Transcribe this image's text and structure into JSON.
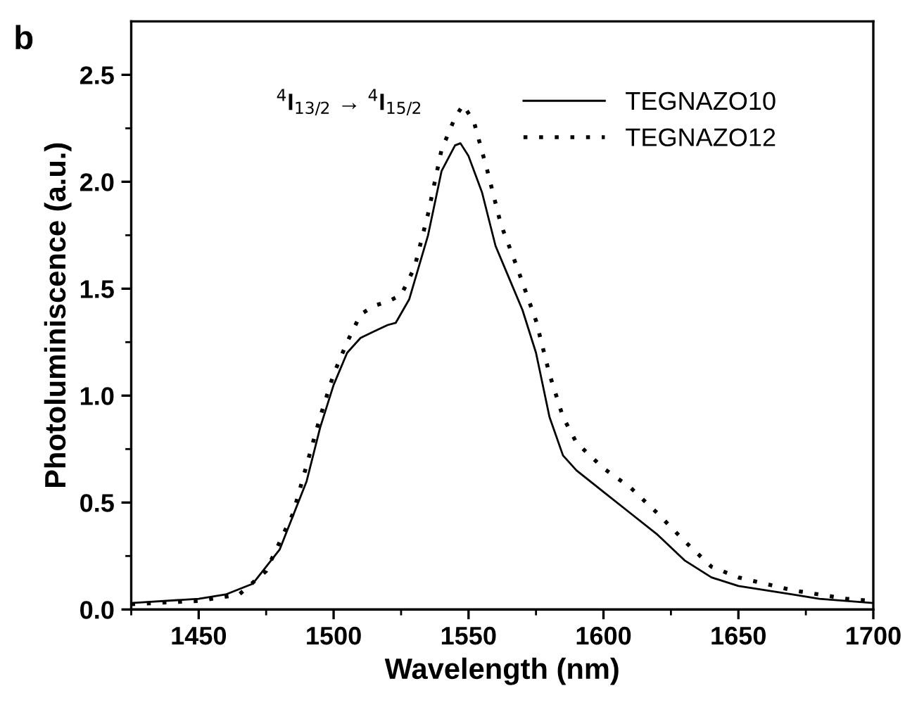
{
  "chart_data": {
    "type": "line",
    "xlabel": "Wavelength (nm)",
    "ylabel": "Photoluminiscence (a.u.)",
    "annotations": [
      "b",
      "$^{4}$I$_{13/2}$ → $^{4}$I$_{15/2}$"
    ],
    "xlim": [
      1425,
      1700
    ],
    "ylim": [
      0,
      2.75
    ],
    "xticks": [
      1450,
      1500,
      1550,
      1600,
      1650,
      1700,
      {
        "value": 1425,
        "label": null
      },
      {
        "value": 1475,
        "label": null
      },
      {
        "value": 1525,
        "label": null
      },
      {
        "value": 1575,
        "label": null
      },
      {
        "value": 1625,
        "label": null
      },
      {
        "value": 1675,
        "label": null
      }
    ],
    "yticks": [
      {
        "value": 0,
        "label": "0.0"
      },
      0.5,
      {
        "value": 1,
        "label": "1.0"
      },
      1.5,
      {
        "value": 2,
        "label": "2.0"
      },
      2.5,
      {
        "value": 0.25,
        "label": null
      },
      {
        "value": 0.75,
        "label": null
      },
      {
        "value": 1.25,
        "label": null
      },
      {
        "value": 1.75,
        "label": null
      },
      {
        "value": 2.25,
        "label": null
      }
    ],
    "grid": false,
    "legend": "top right",
    "series": [
      {
        "name": "TEGNAZO10",
        "color": "#000000",
        "line_style": "solid",
        "x": [
          1425,
          1450,
          1460,
          1470,
          1480,
          1490,
          1495,
          1500,
          1505,
          1510,
          1515,
          1520,
          1523,
          1528,
          1535,
          1540,
          1545,
          1547,
          1550,
          1555,
          1560,
          1565,
          1570,
          1575,
          1580,
          1585,
          1590,
          1600,
          1610,
          1620,
          1630,
          1640,
          1650,
          1660,
          1670,
          1680,
          1690,
          1700
        ],
        "values": [
          0.03,
          0.05,
          0.07,
          0.12,
          0.28,
          0.6,
          0.85,
          1.05,
          1.2,
          1.27,
          1.3,
          1.33,
          1.34,
          1.45,
          1.75,
          2.05,
          2.17,
          2.18,
          2.12,
          1.95,
          1.7,
          1.55,
          1.4,
          1.2,
          0.9,
          0.72,
          0.65,
          0.55,
          0.45,
          0.35,
          0.23,
          0.15,
          0.11,
          0.09,
          0.07,
          0.05,
          0.04,
          0.03
        ]
      },
      {
        "name": "TEGNAZO12",
        "color": "#000000",
        "line_style": "dotted",
        "x": [
          1425,
          1450,
          1465,
          1475,
          1485,
          1495,
          1500,
          1505,
          1510,
          1515,
          1520,
          1525,
          1530,
          1535,
          1540,
          1545,
          1548,
          1552,
          1557,
          1562,
          1568,
          1575,
          1580,
          1585,
          1590,
          1600,
          1610,
          1620,
          1630,
          1640,
          1650,
          1660,
          1670,
          1680,
          1690,
          1700
        ],
        "values": [
          0.025,
          0.04,
          0.07,
          0.18,
          0.45,
          0.9,
          1.1,
          1.25,
          1.38,
          1.42,
          1.44,
          1.47,
          1.6,
          1.85,
          2.15,
          2.3,
          2.36,
          2.28,
          2.05,
          1.8,
          1.6,
          1.35,
          1.1,
          0.9,
          0.78,
          0.66,
          0.57,
          0.45,
          0.32,
          0.2,
          0.15,
          0.12,
          0.09,
          0.07,
          0.05,
          0.04
        ]
      }
    ]
  }
}
